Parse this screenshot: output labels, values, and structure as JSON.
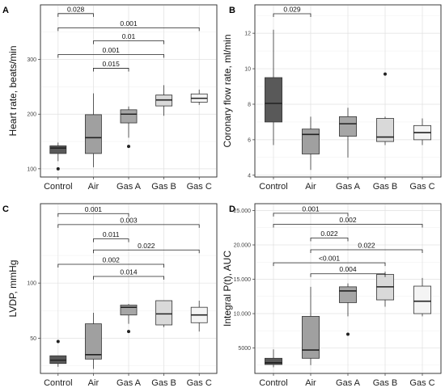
{
  "colors": {
    "control": "#595959",
    "air": "#a0a0a0",
    "gas_a": "#a6a6a6",
    "gas_b": "#d9d9d9",
    "gas_c": "#f4f4f4"
  },
  "chart_data": [
    {
      "type": "box",
      "panel": "A",
      "ylabel": "Heart rate, beats/min",
      "categories": [
        "Control",
        "Air",
        "Gas A",
        "Gas B",
        "Gas C"
      ],
      "ylim": [
        85,
        400
      ],
      "yticks": [
        100,
        200,
        300
      ],
      "ytick_labels": [
        "100",
        "200",
        "300"
      ],
      "minor_ticks": [
        150,
        250,
        350
      ],
      "boxes": [
        {
          "category": "Control",
          "min": 114,
          "q1": 128,
          "median": 138,
          "q3": 142,
          "max": 148,
          "outliers": [
            100
          ]
        },
        {
          "category": "Air",
          "min": 103,
          "q1": 128,
          "median": 157,
          "q3": 199,
          "max": 238,
          "outliers": []
        },
        {
          "category": "Gas A",
          "min": 157,
          "q1": 184,
          "median": 200,
          "q3": 208,
          "max": 214,
          "outliers": [
            141
          ]
        },
        {
          "category": "Gas B",
          "min": 197,
          "q1": 215,
          "median": 226,
          "q3": 235,
          "max": 253,
          "outliers": []
        },
        {
          "category": "Gas C",
          "min": 217,
          "q1": 222,
          "median": 229,
          "q3": 237,
          "max": 245,
          "outliers": []
        }
      ],
      "comparisons": [
        {
          "from": "Control",
          "to": "Air",
          "y": 384,
          "label": "0.028"
        },
        {
          "from": "Control",
          "to": "Gas C",
          "y": 358,
          "label": "0.001"
        },
        {
          "from": "Air",
          "to": "Gas B",
          "y": 334,
          "label": "0.01"
        },
        {
          "from": "Control",
          "to": "Gas B",
          "y": 309,
          "label": "0.001"
        },
        {
          "from": "Air",
          "to": "Gas A",
          "y": 284,
          "label": "0.015"
        }
      ]
    },
    {
      "type": "box",
      "panel": "B",
      "ylabel": "Coronary flow rate, ml/min",
      "categories": [
        "Control",
        "Air",
        "Gas A",
        "Gas B",
        "Gas C"
      ],
      "ylim": [
        3.9,
        13.6
      ],
      "yticks": [
        4,
        6,
        8,
        10,
        12
      ],
      "ytick_labels": [
        "4",
        "6",
        "8",
        "10",
        "12"
      ],
      "minor_ticks": [
        5,
        7,
        9,
        11,
        13
      ],
      "boxes": [
        {
          "category": "Control",
          "min": 5.7,
          "q1": 7.0,
          "median": 8.05,
          "q3": 9.5,
          "max": 12.2,
          "outliers": []
        },
        {
          "category": "Air",
          "min": 4.3,
          "q1": 5.2,
          "median": 6.3,
          "q3": 6.6,
          "max": 7.3,
          "outliers": []
        },
        {
          "category": "Gas A",
          "min": 5.0,
          "q1": 6.2,
          "median": 6.9,
          "q3": 7.3,
          "max": 7.8,
          "outliers": []
        },
        {
          "category": "Gas B",
          "min": 5.7,
          "q1": 5.9,
          "median": 6.15,
          "q3": 7.2,
          "max": 7.3,
          "outliers": [
            9.7
          ]
        },
        {
          "category": "Gas C",
          "min": 5.7,
          "q1": 6.0,
          "median": 6.4,
          "q3": 6.8,
          "max": 7.2,
          "outliers": []
        }
      ],
      "comparisons": [
        {
          "from": "Control",
          "to": "Air",
          "y": 13.1,
          "label": "0.029"
        }
      ]
    },
    {
      "type": "box",
      "panel": "C",
      "ylabel": "LVDP, mmHg",
      "categories": [
        "Control",
        "Air",
        "Gas A",
        "Gas B",
        "Gas C"
      ],
      "ylim": [
        18,
        172
      ],
      "yticks": [
        50,
        100
      ],
      "ytick_labels": [
        "50",
        "100"
      ],
      "minor_ticks": [
        25,
        75,
        125
      ],
      "boxes": [
        {
          "category": "Control",
          "min": 24,
          "q1": 27,
          "median": 30,
          "q3": 34,
          "max": 34,
          "outliers": [
            47
          ]
        },
        {
          "category": "Air",
          "min": 22,
          "q1": 31,
          "median": 35,
          "q3": 63,
          "max": 73,
          "outliers": []
        },
        {
          "category": "Gas A",
          "min": 63,
          "q1": 71,
          "median": 78,
          "q3": 80,
          "max": 81,
          "outliers": [
            56
          ]
        },
        {
          "category": "Gas B",
          "min": 60,
          "q1": 62,
          "median": 72,
          "q3": 84,
          "max": 84,
          "outliers": []
        },
        {
          "category": "Gas C",
          "min": 56,
          "q1": 64,
          "median": 71,
          "q3": 78,
          "max": 84,
          "outliers": []
        }
      ],
      "comparisons": [
        {
          "from": "Control",
          "to": "Gas A",
          "y": 163,
          "label": "0.001"
        },
        {
          "from": "Control",
          "to": "Gas C",
          "y": 153,
          "label": "0.003"
        },
        {
          "from": "Air",
          "to": "Gas A",
          "y": 140,
          "label": "0.011"
        },
        {
          "from": "Air",
          "to": "Gas C",
          "y": 130,
          "label": "0.022"
        },
        {
          "from": "Control",
          "to": "Gas B",
          "y": 117,
          "label": "0.002"
        },
        {
          "from": "Air",
          "to": "Gas B",
          "y": 106,
          "label": "0.014"
        }
      ]
    },
    {
      "type": "box",
      "panel": "D",
      "ylabel": "Integral P(t), AUC",
      "categories": [
        "Control",
        "Air",
        "Gas A",
        "Gas B",
        "Gas C"
      ],
      "ylim": [
        1300,
        26000
      ],
      "yticks": [
        5000,
        10000,
        15000,
        20000,
        25000
      ],
      "ytick_labels": [
        "5000",
        "10.000",
        "15.000",
        "20.000",
        "25.000"
      ],
      "minor_ticks": [
        2500,
        7500,
        12500,
        17500,
        22500
      ],
      "boxes": [
        {
          "category": "Control",
          "min": 2200,
          "q1": 2600,
          "median": 2850,
          "q3": 3500,
          "max": 4800,
          "outliers": []
        },
        {
          "category": "Air",
          "min": 2500,
          "q1": 3500,
          "median": 4700,
          "q3": 9600,
          "max": 13900,
          "outliers": []
        },
        {
          "category": "Gas A",
          "min": 9600,
          "q1": 11600,
          "median": 13300,
          "q3": 13900,
          "max": 14400,
          "outliers": [
            7000
          ]
        },
        {
          "category": "Gas B",
          "min": 11000,
          "q1": 12000,
          "median": 13900,
          "q3": 15700,
          "max": 16100,
          "outliers": []
        },
        {
          "category": "Gas C",
          "min": 9600,
          "q1": 10000,
          "median": 11800,
          "q3": 14000,
          "max": 15200,
          "outliers": []
        }
      ],
      "comparisons": [
        {
          "from": "Control",
          "to": "Gas A",
          "y": 24600,
          "label": "0.001"
        },
        {
          "from": "Control",
          "to": "Gas C",
          "y": 23000,
          "label": "0.002"
        },
        {
          "from": "Air",
          "to": "Gas A",
          "y": 21000,
          "label": "0.022"
        },
        {
          "from": "Air",
          "to": "Gas C",
          "y": 19300,
          "label": "0.022"
        },
        {
          "from": "Control",
          "to": "Gas B",
          "y": 17400,
          "label": "<0.001"
        },
        {
          "from": "Air",
          "to": "Gas B",
          "y": 15800,
          "label": "0.004"
        }
      ]
    }
  ]
}
